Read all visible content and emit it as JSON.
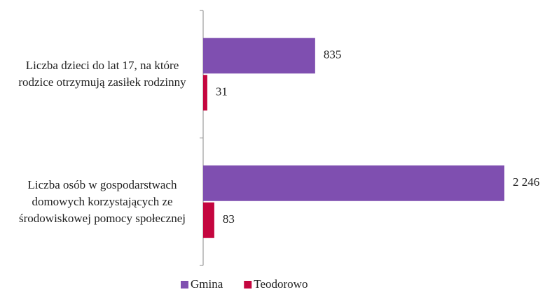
{
  "chart_data": {
    "type": "barh",
    "categories": [
      "Liczba dzieci do lat 17, na które rodzice otrzymują zasiłek rodzinny",
      "Liczba osób w gospodarstwach domowych korzystających ze środowiskowej pomocy społecznej"
    ],
    "series": [
      {
        "name": "Gmina",
        "color": "#7f4fb0",
        "values": [
          835,
          2246
        ],
        "value_labels": [
          "835",
          "2 246"
        ]
      },
      {
        "name": "Teodorowo",
        "color": "#c4063f",
        "values": [
          31,
          83
        ],
        "value_labels": [
          "31",
          "83"
        ]
      }
    ],
    "legend": "bottom"
  }
}
